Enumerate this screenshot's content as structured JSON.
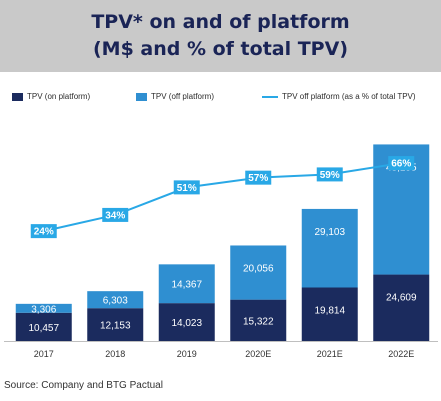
{
  "title": {
    "line1": "TPV* on and of platform",
    "line2": "(M$ and % of total TPV)"
  },
  "legend": {
    "on": "TPV (on platform)",
    "off": "TPV (off platform)",
    "pct": "TPV off platform (as a % of total TPV)"
  },
  "source": "Source: Company and BTG Pactual",
  "colors": {
    "on_platform": "#1b2b5e",
    "off_platform": "#2f8fd1",
    "pct_line": "#29a8e6",
    "title_band": "#c9c9c9",
    "title_text": "#1a2456"
  },
  "chart_data": {
    "type": "bar",
    "stacked": true,
    "categories": [
      "2017",
      "2018",
      "2019",
      "2020E",
      "2021E",
      "2022E"
    ],
    "series": [
      {
        "name": "TPV (on platform)",
        "values": [
          10457,
          12153,
          14023,
          15322,
          19814,
          24609
        ],
        "labels": [
          "10,457",
          "12,153",
          "14,023",
          "15,322",
          "19,814",
          "24,609"
        ]
      },
      {
        "name": "TPV (off platform)",
        "values": [
          3306,
          6303,
          14367,
          20056,
          29103,
          48195
        ],
        "labels": [
          "3,306",
          "6,303",
          "14,367",
          "20,056",
          "29,103",
          "48,195"
        ]
      }
    ],
    "line_series": {
      "name": "TPV off platform (as a % of total TPV)",
      "values": [
        24,
        34,
        51,
        57,
        59,
        66
      ],
      "labels": [
        "24%",
        "34%",
        "51%",
        "57%",
        "59%",
        "66%"
      ]
    },
    "legend_position": "top",
    "grid": false
  }
}
